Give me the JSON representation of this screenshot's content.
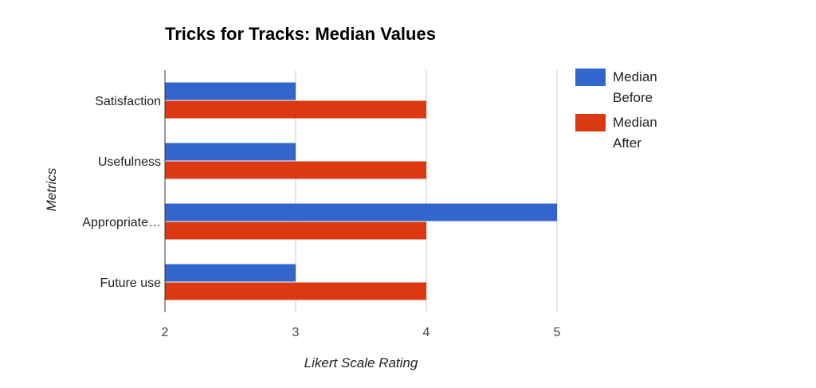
{
  "chart_data": {
    "type": "bar",
    "orientation": "horizontal",
    "title": "Tricks for Tracks: Median Values",
    "xlabel": "Likert Scale Rating",
    "ylabel": "Metrics",
    "categories": [
      "Satisfaction",
      "Usefulness",
      "Appropriate…",
      "Future use"
    ],
    "series": [
      {
        "name": "Median Before",
        "legend_lines": [
          "Median",
          "Before"
        ],
        "color": "#3366cc",
        "values": [
          3,
          3,
          5,
          3
        ]
      },
      {
        "name": "Median After",
        "legend_lines": [
          "Median",
          "After"
        ],
        "color": "#dc3912",
        "values": [
          4,
          4,
          4,
          4
        ]
      }
    ],
    "xlim": [
      2,
      5
    ],
    "xticks": [
      "2",
      "3",
      "4",
      "5"
    ],
    "grid": true,
    "legend_position": "right"
  }
}
